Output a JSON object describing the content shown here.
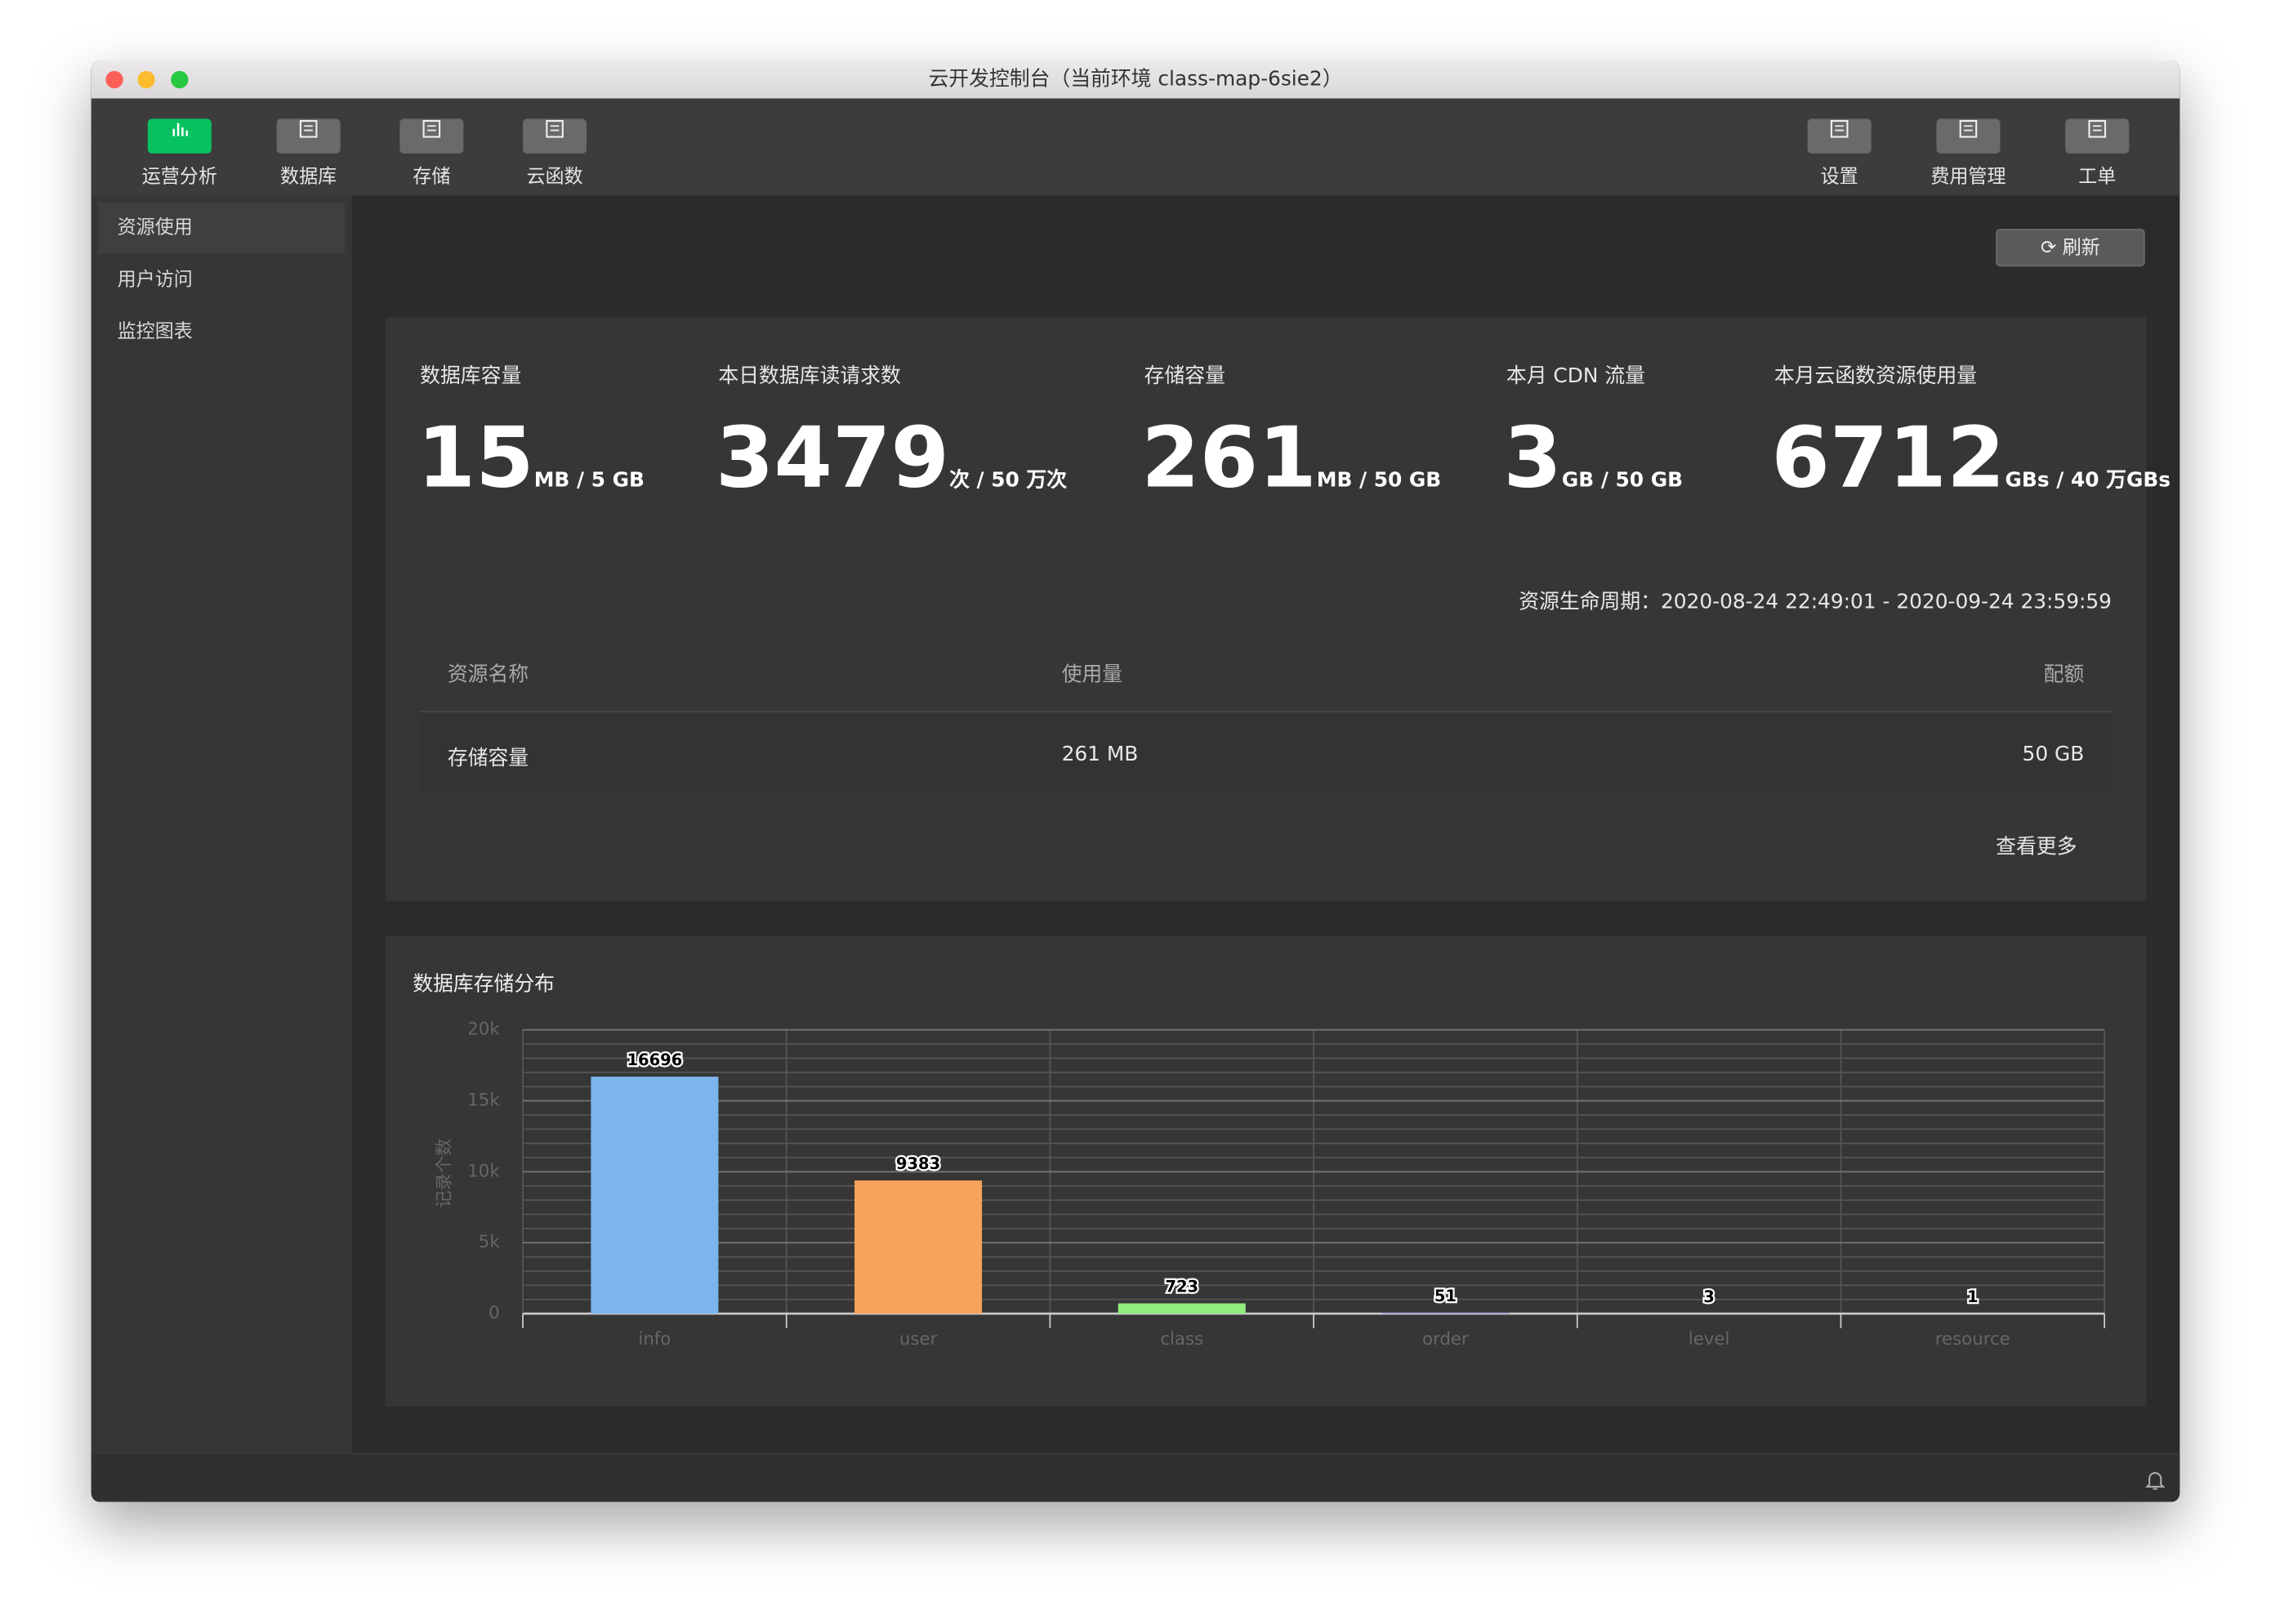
{
  "window": {
    "title": "云开发控制台（当前环境 class-map-6sie2）"
  },
  "toolbar": {
    "left": [
      "运营分析",
      "数据库",
      "存储",
      "云函数"
    ],
    "right": [
      "设置",
      "费用管理",
      "工单"
    ]
  },
  "sidebar": [
    "资源使用",
    "用户访问",
    "监控图表"
  ],
  "refresh": "刷新",
  "stats": [
    {
      "label": "数据库容量",
      "value": 15,
      "unit": "MB / 5 GB"
    },
    {
      "label": "本日数据库读请求数",
      "value": 3479,
      "unit": "次 / 50 万次"
    },
    {
      "label": "存储容量",
      "value": 261,
      "unit": "MB / 50 GB"
    },
    {
      "label": "本月 CDN 流量",
      "value": 3,
      "unit": "GB / 50 GB"
    },
    {
      "label": "本月云函数资源使用量",
      "value": 6712,
      "unit": "GBs / 40 万GBs"
    }
  ],
  "lifecycle": "资源生命周期：2020-08-24 22:49:01 - 2020-09-24 23:59:59",
  "table": {
    "headers": [
      "资源名称",
      "使用量",
      "配额"
    ],
    "rows": [
      [
        "存储容量",
        "261 MB",
        "50 GB"
      ]
    ]
  },
  "more": "查看更多",
  "chart_data": {
    "type": "bar",
    "title": "数据库存储分布",
    "y_label": "记录个数",
    "categories": [
      "info",
      "user",
      "class",
      "order",
      "level",
      "resource"
    ],
    "values": [
      16696,
      9383,
      723,
      51,
      3,
      1
    ],
    "colors": [
      "#7cb5ec",
      "#f7a35c",
      "#90ed7d",
      "#8085e9",
      "#f15c80",
      "#e4d354"
    ],
    "ylim": [
      0,
      20000
    ],
    "yticks": [
      0,
      {
        "value": 5000,
        "label": "5k"
      },
      {
        "value": 10000,
        "label": "10k"
      },
      {
        "value": 15000,
        "label": "15k"
      },
      {
        "value": 20000,
        "label": "20k"
      }
    ],
    "grid": true
  }
}
